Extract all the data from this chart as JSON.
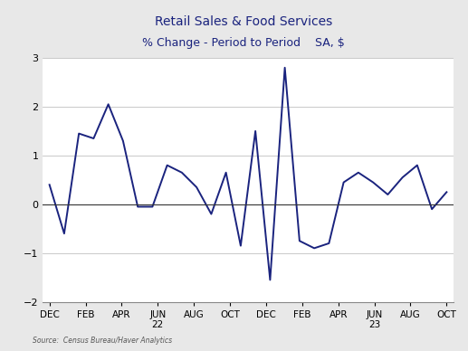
{
  "title1": "Retail Sales & Food Services",
  "title2": "% Change - Period to Period    SA, $",
  "source": "Source:  Census Bureau/Haver Analytics",
  "line_color": "#1a237e",
  "background_color": "#e8e8e8",
  "plot_background": "#ffffff",
  "ylim": [
    -2,
    3
  ],
  "yticks": [
    -2,
    -1,
    0,
    1,
    2,
    3
  ],
  "x_labels": [
    "DEC",
    "FEB",
    "APR",
    "JUN\n22",
    "AUG",
    "OCT",
    "DEC",
    "FEB",
    "APR",
    "JUN\n23",
    "AUG",
    "OCT"
  ],
  "values": [
    0.4,
    -0.6,
    1.45,
    1.35,
    2.05,
    1.3,
    -0.05,
    -0.05,
    0.8,
    0.65,
    0.35,
    -0.2,
    0.65,
    -0.85,
    1.5,
    -1.55,
    2.8,
    -0.75,
    -0.9,
    -0.8,
    0.45,
    0.65,
    0.45,
    0.2,
    0.55,
    0.8,
    -0.1,
    0.25
  ]
}
